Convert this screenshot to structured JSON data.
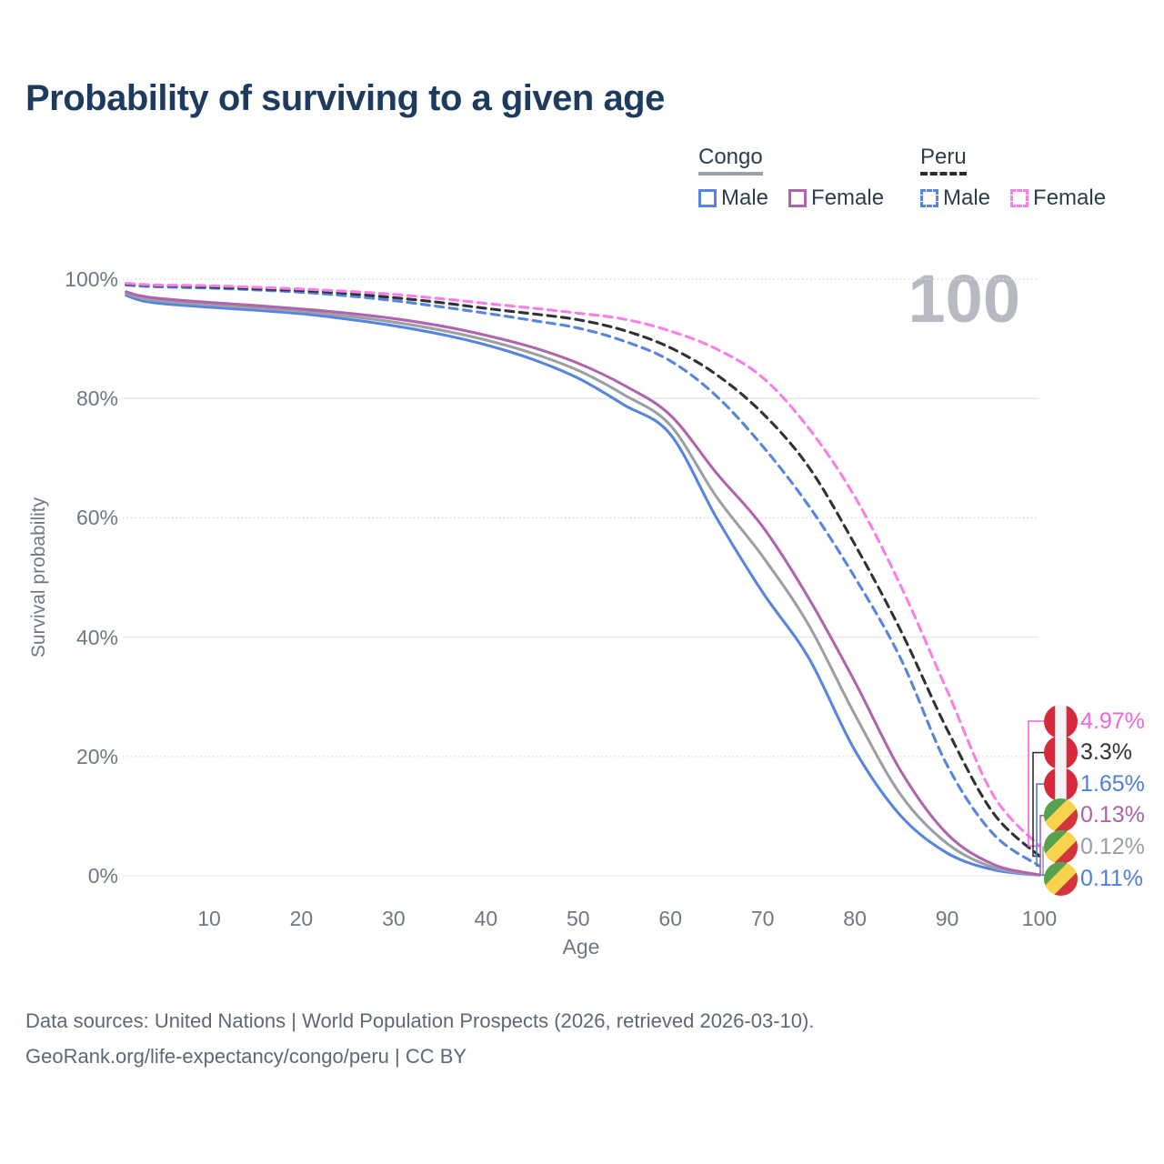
{
  "title": "Probability of surviving to a given age",
  "watermark": "100",
  "legend": {
    "groups": [
      {
        "label": "Congo",
        "line_style": "solid",
        "underline_color": "#9aa0a6",
        "items": [
          {
            "label": "Male",
            "color": "#5585e0"
          },
          {
            "label": "Female",
            "color": "#b164ae"
          }
        ]
      },
      {
        "label": "Peru",
        "line_style": "dashed",
        "underline_color": "#26292e",
        "items": [
          {
            "label": "Male",
            "color": "#5585e0"
          },
          {
            "label": "Female",
            "color": "#f97ee8"
          }
        ]
      }
    ]
  },
  "chart_data": {
    "type": "line",
    "title": "Probability of surviving to a given age",
    "xlabel": "Age",
    "ylabel": "Survival probability",
    "xlim": [
      1,
      100
    ],
    "ylim": [
      0,
      100
    ],
    "grid": true,
    "legend_position": "top-right",
    "x_ticks": [
      10,
      20,
      30,
      40,
      50,
      60,
      70,
      80,
      90,
      100
    ],
    "y_ticks": [
      {
        "value": 0,
        "label": "0%"
      },
      {
        "value": 20,
        "label": "20%"
      },
      {
        "value": 40,
        "label": "40%"
      },
      {
        "value": 60,
        "label": "60%"
      },
      {
        "value": 80,
        "label": "80%"
      },
      {
        "value": 100,
        "label": "100%"
      }
    ],
    "ages": [
      1,
      2,
      3,
      5,
      10,
      15,
      20,
      25,
      30,
      35,
      40,
      45,
      50,
      55,
      60,
      65,
      70,
      75,
      80,
      85,
      90,
      95,
      100
    ],
    "series": [
      {
        "country": "Congo",
        "group": "Male",
        "name": "Congo Male",
        "color": "#5585e0",
        "dash": "solid",
        "end_value": 0.11,
        "values": [
          97.3,
          96.7,
          96.3,
          95.9,
          95.3,
          94.8,
          94.2,
          93.3,
          92.2,
          90.8,
          89.0,
          86.6,
          83.4,
          78.9,
          74.0,
          60.0,
          47.5,
          36.5,
          21.0,
          10.0,
          3.8,
          1.0,
          0.11
        ]
      },
      {
        "country": "Congo",
        "group": "Both sexes",
        "name": "Congo Both sexes",
        "color": "#9b9fa6",
        "dash": "solid",
        "end_value": 0.12,
        "values": [
          97.6,
          97.1,
          96.7,
          96.3,
          95.7,
          95.2,
          94.6,
          93.8,
          92.8,
          91.5,
          89.8,
          87.6,
          84.7,
          80.6,
          75.5,
          63.5,
          53.5,
          42.0,
          27.0,
          13.5,
          5.4,
          1.4,
          0.12
        ]
      },
      {
        "country": "Congo",
        "group": "Female",
        "name": "Congo Female",
        "color": "#b164ae",
        "dash": "solid",
        "end_value": 0.13,
        "values": [
          97.9,
          97.4,
          97.1,
          96.7,
          96.1,
          95.6,
          95.0,
          94.3,
          93.4,
          92.2,
          90.6,
          88.6,
          85.9,
          82.2,
          77.2,
          67.5,
          58.5,
          46.5,
          32.5,
          17.5,
          7.0,
          1.9,
          0.13
        ]
      },
      {
        "country": "Peru",
        "group": "Male",
        "name": "Peru Male",
        "color": "#5585e0",
        "dash": "dashed",
        "end_value": 1.65,
        "values": [
          99.0,
          98.9,
          98.8,
          98.7,
          98.5,
          98.2,
          97.8,
          97.2,
          96.4,
          95.4,
          94.3,
          93.1,
          91.8,
          89.6,
          86.3,
          80.4,
          72.0,
          62.0,
          50.0,
          36.3,
          18.5,
          7.0,
          1.65
        ]
      },
      {
        "country": "Peru",
        "group": "Both sexes",
        "name": "Peru Both sexes",
        "color": "#2f3338",
        "dash": "dashed",
        "end_value": 3.3,
        "values": [
          99.2,
          99.1,
          99.0,
          98.9,
          98.7,
          98.4,
          98.1,
          97.6,
          96.9,
          96.1,
          95.1,
          94.2,
          93.2,
          91.4,
          88.5,
          84.0,
          77.5,
          68.5,
          55.5,
          41.0,
          24.5,
          10.5,
          3.3
        ]
      },
      {
        "country": "Peru",
        "group": "Female",
        "name": "Peru Female",
        "color": "#f97ee8",
        "dash": "dashed",
        "end_value": 4.97,
        "values": [
          99.3,
          99.2,
          99.1,
          99.0,
          98.9,
          98.65,
          98.35,
          97.95,
          97.45,
          96.75,
          95.95,
          95.15,
          94.3,
          93.3,
          91.3,
          88.3,
          83.5,
          75.0,
          63.5,
          48.5,
          31.0,
          13.5,
          4.97
        ]
      }
    ]
  },
  "end_labels": [
    {
      "text": "4.97%",
      "color": "#f463e0",
      "flag": "peru",
      "series": "Peru Female"
    },
    {
      "text": "3.3%",
      "color": "#2f3338",
      "flag": "peru",
      "series": "Peru Both sexes"
    },
    {
      "text": "1.65%",
      "color": "#4f7de0",
      "flag": "peru",
      "series": "Peru Male"
    },
    {
      "text": "0.13%",
      "color": "#ad62a4",
      "flag": "congo",
      "series": "Congo Female"
    },
    {
      "text": "0.12%",
      "color": "#9aa0a6",
      "flag": "congo",
      "series": "Congo Both sexes"
    },
    {
      "text": "0.11%",
      "color": "#4f7de0",
      "flag": "congo",
      "series": "Congo Male"
    }
  ],
  "flag_colors": {
    "peru": {
      "red": "#d8283c",
      "white": "#f2f3f5"
    },
    "congo": {
      "green": "#55a14e",
      "yellow": "#f8d34d",
      "red": "#d63340"
    }
  },
  "footer": {
    "line1": "Data sources: United Nations | World Population Prospects (2026, retrieved 2026-03-10).",
    "line2": "GeoRank.org/life-expectancy/congo/peru | CC BY"
  }
}
